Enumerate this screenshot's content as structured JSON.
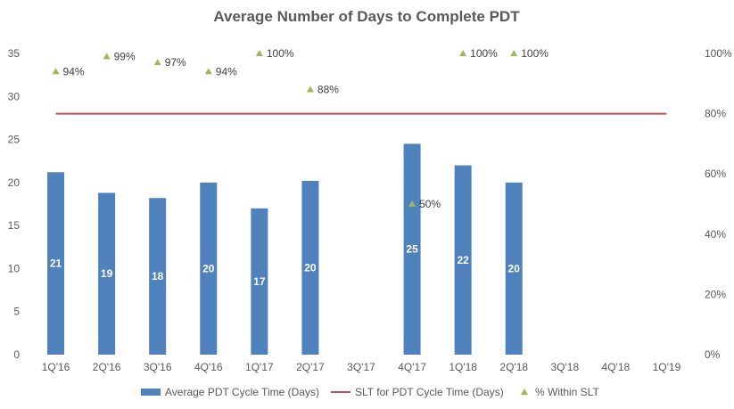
{
  "chart_data": {
    "type": "bar",
    "title": "Average Number of Days to Complete PDT",
    "categories": [
      "1Q'16",
      "2Q'16",
      "3Q'16",
      "4Q'16",
      "1Q'17",
      "2Q'17",
      "3Q'17",
      "4Q'17",
      "1Q'18",
      "2Q'18",
      "3Q'18",
      "4Q'18",
      "1Q'19"
    ],
    "series": [
      {
        "name": "Average PDT Cycle Time (Days)",
        "type": "bar",
        "axis": "left",
        "color": "#4F81BD",
        "values": [
          21.2,
          18.8,
          18.2,
          20.0,
          17.0,
          20.2,
          null,
          24.5,
          22.0,
          20.0,
          null,
          null,
          null
        ],
        "labels": [
          "21",
          "19",
          "18",
          "20",
          "17",
          "20",
          null,
          "25",
          "22",
          "20",
          null,
          null,
          null
        ]
      },
      {
        "name": "SLT for PDT Cycle Time (Days)",
        "type": "line",
        "axis": "left",
        "color": "#C0504D",
        "values": [
          28,
          28,
          28,
          28,
          28,
          28,
          28,
          28,
          28,
          28,
          28,
          28,
          28
        ]
      },
      {
        "name": "% Within SLT",
        "type": "scatter",
        "axis": "right",
        "color": "#9BBB59",
        "values": [
          0.94,
          0.99,
          0.97,
          0.94,
          1.0,
          0.88,
          null,
          0.5,
          1.0,
          1.0,
          null,
          null,
          null
        ],
        "labels": [
          "94%",
          "99%",
          "97%",
          "94%",
          "100%",
          "88%",
          null,
          "50%",
          "100%",
          "100%",
          null,
          null,
          null
        ]
      }
    ],
    "ylim": [
      0,
      35
    ],
    "yticks": [
      "0",
      "5",
      "10",
      "15",
      "20",
      "25",
      "30",
      "35"
    ],
    "y2lim": [
      0,
      1.0
    ],
    "y2ticks": [
      "0%",
      "20%",
      "40%",
      "60%",
      "80%",
      "100%"
    ],
    "legend_position": "bottom",
    "grid": false
  }
}
